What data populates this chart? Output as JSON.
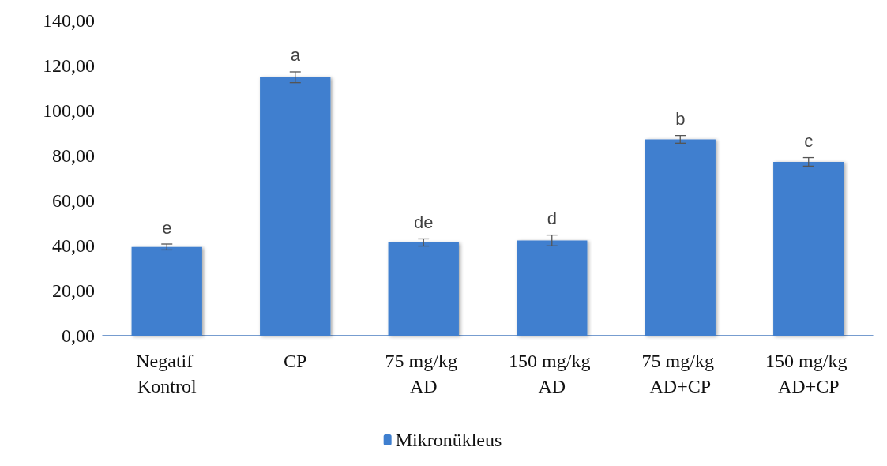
{
  "chart_data": {
    "type": "bar",
    "categories": [
      "Negatif Kontrol",
      "CP",
      "75 mg/kg AD",
      "150 mg/kg AD",
      "75 mg/kg AD+CP",
      "150 mg/kg AD+CP"
    ],
    "series": [
      {
        "name": "Mikronükleus",
        "color": "#3f7fcf",
        "values": [
          39.4,
          114.8,
          41.4,
          42.3,
          87.2,
          77.2
        ],
        "errors": [
          1.3,
          2.4,
          1.6,
          2.4,
          1.7,
          1.9
        ]
      }
    ],
    "ylim": [
      0,
      140
    ],
    "yticks": [
      {
        "value": 0,
        "label": "0,00"
      },
      {
        "value": 20,
        "label": "20,00"
      },
      {
        "value": 40,
        "label": "40,00"
      },
      {
        "value": 60,
        "label": "60,00"
      },
      {
        "value": 80,
        "label": "80,00"
      },
      {
        "value": 100,
        "label": "100,00"
      },
      {
        "value": 120,
        "label": "120,00"
      },
      {
        "value": 140,
        "label": "140,00"
      }
    ],
    "annotations": [
      {
        "text": "e",
        "x": "Negatif Kontrol",
        "y": 40.7
      },
      {
        "text": "a",
        "x": "CP",
        "y": 117.2
      },
      {
        "text": "de",
        "x": "75 mg/kg AD",
        "y": 43
      },
      {
        "text": "d",
        "x": "150 mg/kg AD",
        "y": 44.7
      },
      {
        "text": "b",
        "x": "75 mg/kg AD+CP",
        "y": 88.9
      },
      {
        "text": "c",
        "x": "150 mg/kg AD+CP",
        "y": 79.1
      }
    ],
    "grid": false,
    "legend": "bottom"
  }
}
